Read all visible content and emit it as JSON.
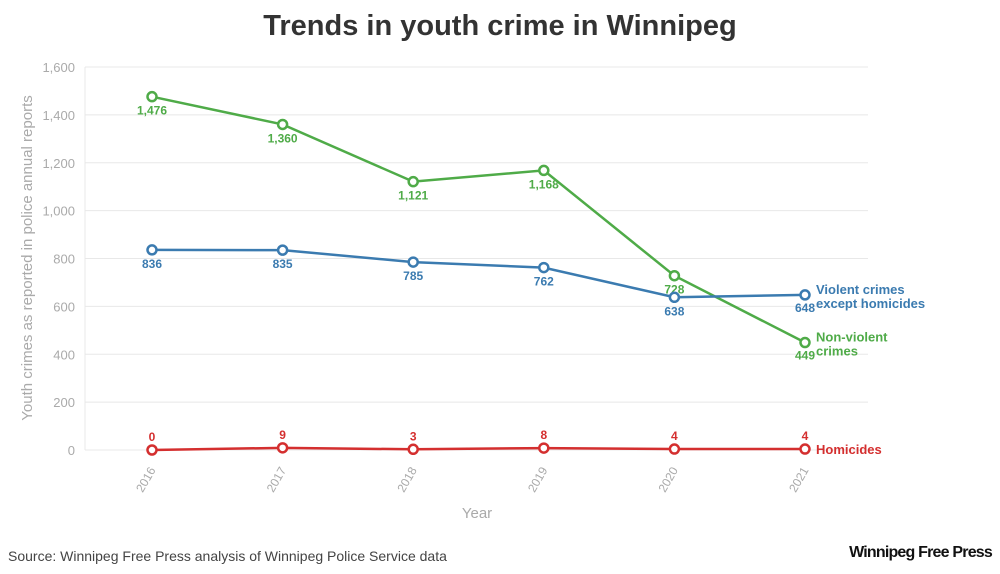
{
  "chart_data": {
    "type": "line",
    "title": "Trends in youth crime in Winnipeg",
    "xlabel": "Year",
    "ylabel": "Youth crimes as reported in police annual reports",
    "ylim": [
      0,
      1600
    ],
    "yticks": [
      0,
      200,
      400,
      600,
      800,
      1000,
      1200,
      1400,
      1600
    ],
    "ytick_labels": [
      "0",
      "200",
      "400",
      "600",
      "800",
      "1,000",
      "1,200",
      "1,400",
      "1,600"
    ],
    "x": [
      "2016",
      "2017",
      "2018",
      "2019",
      "2020",
      "2021"
    ],
    "grid": true,
    "legend": "inline labels at right end of each line",
    "series": [
      {
        "name": "Non-violent crimes",
        "label_lines": [
          "Non-violent",
          "crimes"
        ],
        "color": "#4fab48",
        "values": [
          1476,
          1360,
          1121,
          1168,
          728,
          449
        ],
        "labels": [
          "1,476",
          "1,360",
          "1,121",
          "1,168",
          "728",
          "449"
        ]
      },
      {
        "name": "Violent crimes except homicides",
        "label_lines": [
          "Violent crimes",
          "except homicides"
        ],
        "color": "#3b7bb0",
        "values": [
          836,
          835,
          785,
          762,
          638,
          648
        ],
        "labels": [
          "836",
          "835",
          "785",
          "762",
          "638",
          "648"
        ]
      },
      {
        "name": "Homicides",
        "label_lines": [
          "Homicides"
        ],
        "color": "#d42f2f",
        "values": [
          0,
          9,
          3,
          8,
          4,
          4
        ],
        "labels": [
          "0",
          "9",
          "3",
          "8",
          "4",
          "4"
        ]
      }
    ]
  },
  "footer": {
    "source": "Source: Winnipeg Free Press analysis of Winnipeg Police Service data",
    "logo": "Winnipeg Free Press"
  }
}
